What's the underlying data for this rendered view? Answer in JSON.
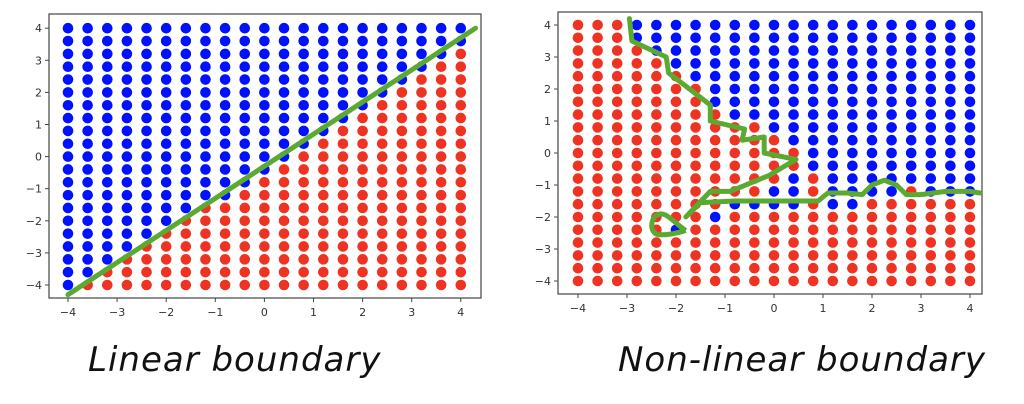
{
  "colors": {
    "class_a": "#0011ff",
    "class_b": "#ee3322",
    "boundary": "#5aaa32",
    "frame": "#444444"
  },
  "captions": {
    "left": "Linear boundary",
    "right": "Non-linear boundary"
  },
  "chart_data": [
    {
      "type": "scatter",
      "title": "Linear boundary",
      "xlabel": "",
      "ylabel": "",
      "xlim": [
        -4.4,
        4.4
      ],
      "ylim": [
        -4.4,
        4.4
      ],
      "xticks": [
        -4,
        -3,
        -2,
        -1,
        0,
        1,
        2,
        3,
        4
      ],
      "yticks": [
        -4,
        -3,
        -2,
        -1,
        0,
        1,
        2,
        3,
        4
      ],
      "grid": {
        "x_start": -4,
        "x_step": 0.4,
        "count": 21
      },
      "series": [
        {
          "name": "blue class",
          "color": "#0011ff",
          "rule": "y > 0.95*x - 0.45"
        },
        {
          "name": "red class",
          "color": "#ee3322",
          "rule": "y <= 0.95*x - 0.45"
        }
      ],
      "boundary_line": {
        "x": [
          -4.0,
          4.3
        ],
        "y": [
          -4.3,
          4.0
        ]
      }
    },
    {
      "type": "scatter",
      "title": "Non-linear boundary",
      "xlabel": "",
      "ylabel": "",
      "xlim": [
        -4.4,
        4.4
      ],
      "ylim": [
        -4.4,
        4.4
      ],
      "xticks": [
        -4,
        -3,
        -2,
        -1,
        0,
        1,
        2,
        3,
        4
      ],
      "yticks": [
        -4,
        -3,
        -2,
        -1,
        0,
        1,
        2,
        3,
        4
      ],
      "grid": {
        "x_start": -4,
        "x_step": 0.4,
        "count": 21
      },
      "series": [
        {
          "name": "blue class",
          "color": "#0011ff"
        },
        {
          "name": "red class",
          "color": "#ee3322"
        }
      ],
      "blue_rows_by_column": [
        [],
        [],
        [],
        [
          [
            3.6,
            4.0
          ]
        ],
        [
          [
            3.2,
            4.0
          ]
        ],
        [
          [
            2.8,
            4.0
          ],
          [
            -2.4,
            -2.4
          ]
        ],
        [
          [
            2.4,
            4.0
          ]
        ],
        [
          [
            1.6,
            4.0
          ],
          [
            -2.0,
            -2.0
          ]
        ],
        [
          [
            1.2,
            4.0
          ],
          [
            -1.6,
            -1.6
          ]
        ],
        [
          [
            1.2,
            4.0
          ],
          [
            -1.6,
            -1.6
          ]
        ],
        [
          [
            0.8,
            4.0
          ],
          [
            -1.6,
            -1.2
          ]
        ],
        [
          [
            0.4,
            4.0
          ],
          [
            -1.6,
            -0.8
          ]
        ],
        [
          [
            -0.4,
            4.0
          ]
        ],
        [
          [
            0.0,
            4.0
          ],
          [
            -1.6,
            -0.4
          ]
        ],
        [
          [
            -1.6,
            4.0
          ]
        ],
        [
          [
            -1.2,
            4.0
          ]
        ],
        [
          [
            -1.2,
            4.0
          ]
        ],
        [
          [
            -0.8,
            4.0
          ]
        ],
        [
          [
            -1.2,
            4.0
          ]
        ],
        [
          [
            -1.2,
            4.0
          ]
        ],
        [
          [
            -1.2,
            4.0
          ]
        ]
      ],
      "boundary_line": {
        "x": [
          -2.95,
          -2.9,
          -2.2,
          -2.15,
          -1.3,
          -1.3,
          -0.6,
          -0.65,
          -0.2,
          -0.2,
          0.45,
          -0.1,
          -0.9,
          -1.3,
          -1.8,
          -1.5,
          -0.8,
          0.9,
          1.1,
          1.5,
          1.8,
          2.0,
          2.25,
          2.5,
          2.7,
          3.0,
          3.5,
          4.0,
          4.2
        ],
        "y": [
          4.2,
          3.5,
          3.0,
          2.5,
          1.5,
          1.0,
          0.75,
          0.4,
          0.5,
          0.0,
          -0.2,
          -0.7,
          -1.2,
          -1.2,
          -2.0,
          -1.55,
          -1.5,
          -1.5,
          -1.25,
          -1.25,
          -1.3,
          -1.0,
          -0.85,
          -1.0,
          -1.3,
          -1.3,
          -1.2,
          -1.2,
          -1.25
        ]
      },
      "boundary_loop": {
        "center": [
          -2.25,
          -2.3
        ],
        "note": "small closed loop enclosing one blue point"
      }
    }
  ]
}
